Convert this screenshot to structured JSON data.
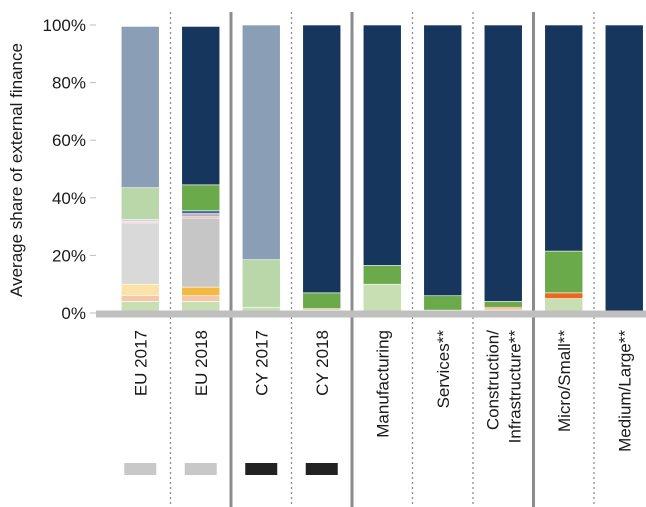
{
  "chart_data": {
    "type": "bar",
    "stacked": true,
    "ylabel": "Average share of external finance",
    "ylim": [
      0,
      100
    ],
    "yticks": [
      "0%",
      "20%",
      "40%",
      "60%",
      "80%",
      "100%"
    ],
    "grid": false,
    "categories": [
      [
        "EU 2017"
      ],
      [
        "EU 2018"
      ],
      [
        "CY 2017"
      ],
      [
        "CY 2018"
      ],
      [
        "Manufacturing"
      ],
      [
        "Services**"
      ],
      [
        "Construction/",
        "Infrastructure**"
      ],
      [
        "Micro/Small**"
      ],
      [
        "Medium/Large**"
      ]
    ],
    "series": [
      {
        "color": "#c8dfb3",
        "values": [
          4,
          4,
          2,
          1,
          10,
          1,
          1,
          5,
          0
        ]
      },
      {
        "color": "#f4c7a8",
        "values": [
          2,
          2,
          0,
          0.5,
          0,
          0,
          0.5,
          0,
          0
        ]
      },
      {
        "color": "#f4b942",
        "values": [
          0,
          3,
          0,
          0,
          0,
          0,
          0,
          0,
          0
        ]
      },
      {
        "color": "#e96a1f",
        "values": [
          0,
          0,
          0,
          0,
          0,
          0,
          0.5,
          2,
          0
        ]
      },
      {
        "color": "#fbe2a8",
        "values": [
          4,
          0,
          0,
          0,
          0,
          0,
          0,
          0,
          0
        ]
      },
      {
        "color": "#d9d9d9",
        "values": [
          21,
          0,
          0,
          0,
          0,
          0,
          0,
          0,
          0
        ]
      },
      {
        "color": "#c6c6c6",
        "values": [
          0,
          24,
          0,
          0,
          0,
          0,
          0,
          0,
          0
        ]
      },
      {
        "color": "#e9a7a0",
        "values": [
          0.5,
          0.5,
          0,
          0,
          0,
          0,
          0,
          0,
          0
        ]
      },
      {
        "color": "#c0524a",
        "values": [
          0,
          0.5,
          0,
          0,
          0,
          0,
          0,
          0,
          0
        ]
      },
      {
        "color": "#e8e8e8",
        "values": [
          0.5,
          0,
          0,
          0,
          0,
          0,
          0,
          0,
          0
        ]
      },
      {
        "color": "#8fb3d1",
        "values": [
          0.5,
          0.5,
          0,
          0,
          0,
          0,
          0,
          0,
          0
        ]
      },
      {
        "color": "#3b6fa0",
        "values": [
          0,
          1,
          0,
          0,
          0,
          0,
          0,
          0,
          0
        ]
      },
      {
        "color": "#b9d7a8",
        "values": [
          11,
          0,
          16.5,
          0,
          0,
          0,
          0,
          0,
          0
        ]
      },
      {
        "color": "#6aaa4b",
        "values": [
          0,
          9,
          0,
          5.5,
          6.5,
          5,
          2,
          14.5,
          0
        ]
      },
      {
        "color": "#8a9fb5",
        "values": [
          56,
          0,
          81.5,
          0,
          0,
          0,
          0,
          0,
          0
        ]
      },
      {
        "color": "#17365d",
        "values": [
          0,
          55,
          0,
          93,
          83.5,
          94,
          96,
          78.5,
          100
        ]
      }
    ],
    "legend_markers": [
      {
        "color": "#c8c8c8"
      },
      {
        "color": "#c8c8c8"
      },
      {
        "color": "#222222"
      },
      {
        "color": "#222222"
      }
    ]
  }
}
